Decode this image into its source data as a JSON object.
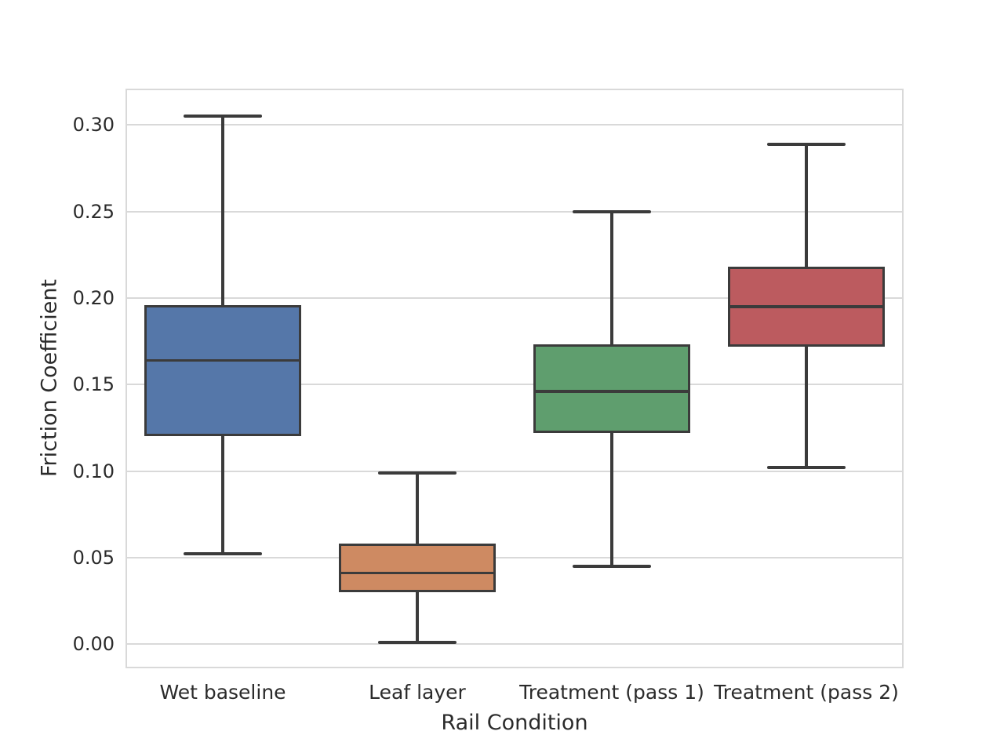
{
  "figure": {
    "background": "#ffffff",
    "grid_color": "#d9d9d9",
    "line_color": "#3b3b3b",
    "text_color": "#2b2b2b"
  },
  "chart_data": {
    "type": "boxplot",
    "title": "",
    "xlabel": "Rail Condition",
    "ylabel": "Friction Coefficient",
    "categories": [
      "Wet baseline",
      "Leaf layer",
      "Treatment (pass 1)",
      "Treatment (pass 2)"
    ],
    "ytick_values": [
      0.0,
      0.05,
      0.1,
      0.15,
      0.2,
      0.25,
      0.3
    ],
    "ytick_labels": [
      "0.00",
      "0.05",
      "0.10",
      "0.15",
      "0.20",
      "0.25",
      "0.30"
    ],
    "ylim": [
      -0.014,
      0.321
    ],
    "grid": true,
    "legend": "none",
    "boxes": [
      {
        "label": "Wet baseline",
        "color": "#5577A9",
        "whisker_low": 0.052,
        "q1": 0.12,
        "median": 0.164,
        "q3": 0.196,
        "whisker_high": 0.305
      },
      {
        "label": "Leaf layer",
        "color": "#CE8A62",
        "whisker_low": 0.001,
        "q1": 0.03,
        "median": 0.041,
        "q3": 0.058,
        "whisker_high": 0.099
      },
      {
        "label": "Treatment (pass 1)",
        "color": "#5F9E6E",
        "whisker_low": 0.045,
        "q1": 0.122,
        "median": 0.146,
        "q3": 0.173,
        "whisker_high": 0.25
      },
      {
        "label": "Treatment (pass 2)",
        "color": "#BC5B5F",
        "whisker_low": 0.102,
        "q1": 0.172,
        "median": 0.195,
        "q3": 0.218,
        "whisker_high": 0.289
      }
    ]
  }
}
